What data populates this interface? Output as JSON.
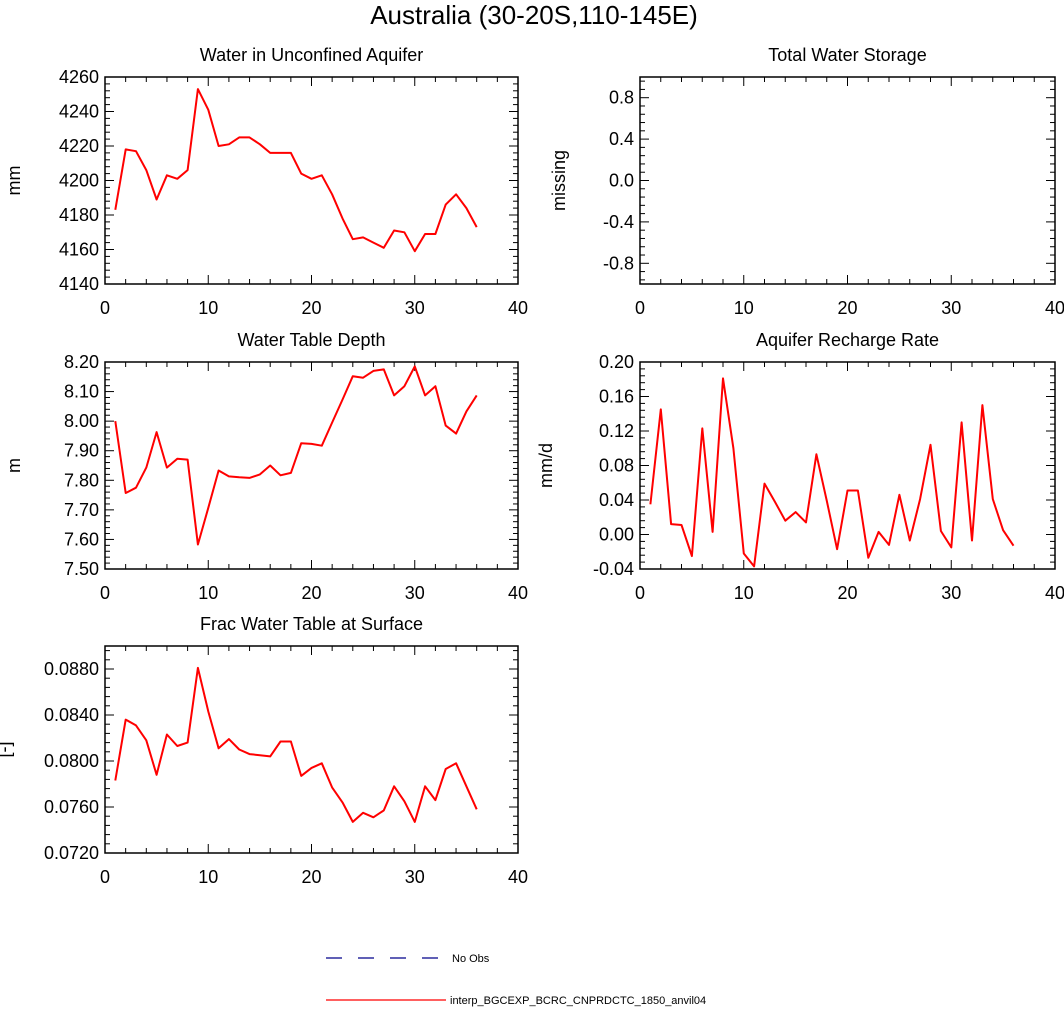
{
  "figure": {
    "title": "Australia (30-20S,110-145E)"
  },
  "chart_data": [
    {
      "id": "p1",
      "type": "line",
      "title": "Water in Unconfined Aquifer",
      "ylabel": "mm",
      "xlim": [
        0,
        40
      ],
      "ylim": [
        4140,
        4260
      ],
      "xticks": [
        0,
        10,
        20,
        30,
        40
      ],
      "yticks": [
        4140,
        4160,
        4180,
        4200,
        4220,
        4240,
        4260
      ],
      "ytick_labels": [
        "4140",
        "4160",
        "4180",
        "4200",
        "4220",
        "4240",
        "4260"
      ],
      "series": [
        {
          "name": "interp_BGCEXP_BCRC_CNPRDCTC_1850_anvil04",
          "color": "#ff0000",
          "x": [
            1,
            2,
            3,
            4,
            5,
            6,
            7,
            8,
            9,
            10,
            11,
            12,
            13,
            14,
            15,
            16,
            17,
            18,
            19,
            20,
            21,
            22,
            23,
            24,
            25,
            26,
            27,
            28,
            29,
            30,
            31,
            32,
            33,
            34,
            35,
            36
          ],
          "values": [
            4183,
            4218,
            4217,
            4206,
            4189,
            4203,
            4201,
            4206,
            4253,
            4241,
            4220,
            4221,
            4225,
            4225,
            4221,
            4216,
            4216,
            4216,
            4204,
            4201,
            4203,
            4192,
            4178,
            4166,
            4167,
            4164,
            4161,
            4171,
            4170,
            4159,
            4169,
            4169,
            4186,
            4192,
            4184,
            4173
          ]
        }
      ]
    },
    {
      "id": "p2",
      "type": "line",
      "title": "Total Water Storage",
      "ylabel": "missing",
      "xlim": [
        0,
        40
      ],
      "ylim": [
        -1.0,
        1.0
      ],
      "xticks": [
        0,
        10,
        20,
        30,
        40
      ],
      "yticks": [
        -0.8,
        -0.4,
        0.0,
        0.4,
        0.8
      ],
      "ytick_labels": [
        "-0.8",
        "-0.4",
        "0.0",
        "0.4",
        "0.8"
      ],
      "series": []
    },
    {
      "id": "p3",
      "type": "line",
      "title": "Water Table Depth",
      "ylabel": "m",
      "xlim": [
        0,
        40
      ],
      "ylim": [
        7.5,
        8.2
      ],
      "xticks": [
        0,
        10,
        20,
        30,
        40
      ],
      "yticks": [
        7.5,
        7.6,
        7.7,
        7.8,
        7.9,
        8.0,
        8.1,
        8.2
      ],
      "ytick_labels": [
        "7.50",
        "7.60",
        "7.70",
        "7.80",
        "7.90",
        "8.00",
        "8.10",
        "8.20"
      ],
      "series": [
        {
          "name": "interp_BGCEXP_BCRC_CNPRDCTC_1850_anvil04",
          "color": "#ff0000",
          "x": [
            1,
            2,
            3,
            4,
            5,
            6,
            7,
            8,
            9,
            10,
            11,
            12,
            13,
            14,
            15,
            16,
            17,
            18,
            19,
            20,
            21,
            22,
            23,
            24,
            25,
            26,
            27,
            28,
            29,
            30,
            31,
            32,
            33,
            34,
            35,
            36
          ],
          "values": [
            8.0,
            7.757,
            7.775,
            7.843,
            7.963,
            7.843,
            7.873,
            7.87,
            7.583,
            7.707,
            7.833,
            7.813,
            7.81,
            7.808,
            7.82,
            7.85,
            7.817,
            7.825,
            7.925,
            7.923,
            7.917,
            7.995,
            8.073,
            8.152,
            8.147,
            8.17,
            8.175,
            8.087,
            8.118,
            8.185,
            8.087,
            8.118,
            7.985,
            7.958,
            8.033,
            8.087
          ]
        }
      ]
    },
    {
      "id": "p4",
      "type": "line",
      "title": "Aquifer Recharge Rate",
      "ylabel": "mm/d",
      "xlim": [
        0,
        40
      ],
      "ylim": [
        -0.04,
        0.2
      ],
      "xticks": [
        0,
        10,
        20,
        30,
        40
      ],
      "yticks": [
        -0.04,
        0.0,
        0.04,
        0.08,
        0.12,
        0.16,
        0.2
      ],
      "ytick_labels": [
        "-0.04",
        "0.00",
        "0.04",
        "0.08",
        "0.12",
        "0.16",
        "0.20"
      ],
      "series": [
        {
          "name": "interp_BGCEXP_BCRC_CNPRDCTC_1850_anvil04",
          "color": "#ff0000",
          "x": [
            1,
            2,
            3,
            4,
            5,
            6,
            7,
            8,
            9,
            10,
            11,
            12,
            13,
            14,
            15,
            16,
            17,
            18,
            19,
            20,
            21,
            22,
            23,
            24,
            25,
            26,
            27,
            28,
            29,
            30,
            31,
            32,
            33,
            34,
            35,
            36
          ],
          "values": [
            0.035,
            0.145,
            0.012,
            0.011,
            -0.025,
            0.123,
            0.003,
            0.181,
            0.1,
            -0.022,
            -0.037,
            0.059,
            0.038,
            0.016,
            0.026,
            0.014,
            0.093,
            0.039,
            -0.017,
            0.051,
            0.051,
            -0.027,
            0.003,
            -0.012,
            0.046,
            -0.007,
            0.041,
            0.104,
            0.004,
            -0.015,
            0.13,
            -0.007,
            0.15,
            0.041,
            0.005,
            -0.013
          ]
        }
      ]
    },
    {
      "id": "p5",
      "type": "line",
      "title": "Frac Water Table at Surface",
      "ylabel": "[-]",
      "xlim": [
        0,
        40
      ],
      "ylim": [
        0.072,
        0.09
      ],
      "xticks": [
        0,
        10,
        20,
        30,
        40
      ],
      "yticks": [
        0.072,
        0.076,
        0.08,
        0.084,
        0.088
      ],
      "ytick_labels": [
        "0.0720",
        "0.0760",
        "0.0800",
        "0.0840",
        "0.0880"
      ],
      "series": [
        {
          "name": "interp_BGCEXP_BCRC_CNPRDCTC_1850_anvil04",
          "color": "#ff0000",
          "x": [
            1,
            2,
            3,
            4,
            5,
            6,
            7,
            8,
            9,
            10,
            11,
            12,
            13,
            14,
            15,
            16,
            17,
            18,
            19,
            20,
            21,
            22,
            23,
            24,
            25,
            26,
            27,
            28,
            29,
            30,
            31,
            32,
            33,
            34,
            35,
            36
          ],
          "values": [
            0.0783,
            0.0836,
            0.0831,
            0.0818,
            0.0788,
            0.0823,
            0.0813,
            0.0816,
            0.0881,
            0.0843,
            0.0811,
            0.0819,
            0.081,
            0.0806,
            0.0805,
            0.0804,
            0.0817,
            0.0817,
            0.0787,
            0.0794,
            0.0798,
            0.0777,
            0.0764,
            0.0747,
            0.0755,
            0.0751,
            0.0757,
            0.0778,
            0.0765,
            0.0747,
            0.0778,
            0.0766,
            0.0793,
            0.0798,
            0.0778,
            0.0758
          ]
        }
      ]
    }
  ],
  "legend": {
    "placement": "bottom-center",
    "entries": [
      {
        "label": "No Obs",
        "color": "#00008b",
        "style": "dashed"
      },
      {
        "label": "interp_BGCEXP_BCRC_CNPRDCTC_1850_anvil04",
        "color": "#ff0000",
        "style": "solid"
      }
    ]
  }
}
